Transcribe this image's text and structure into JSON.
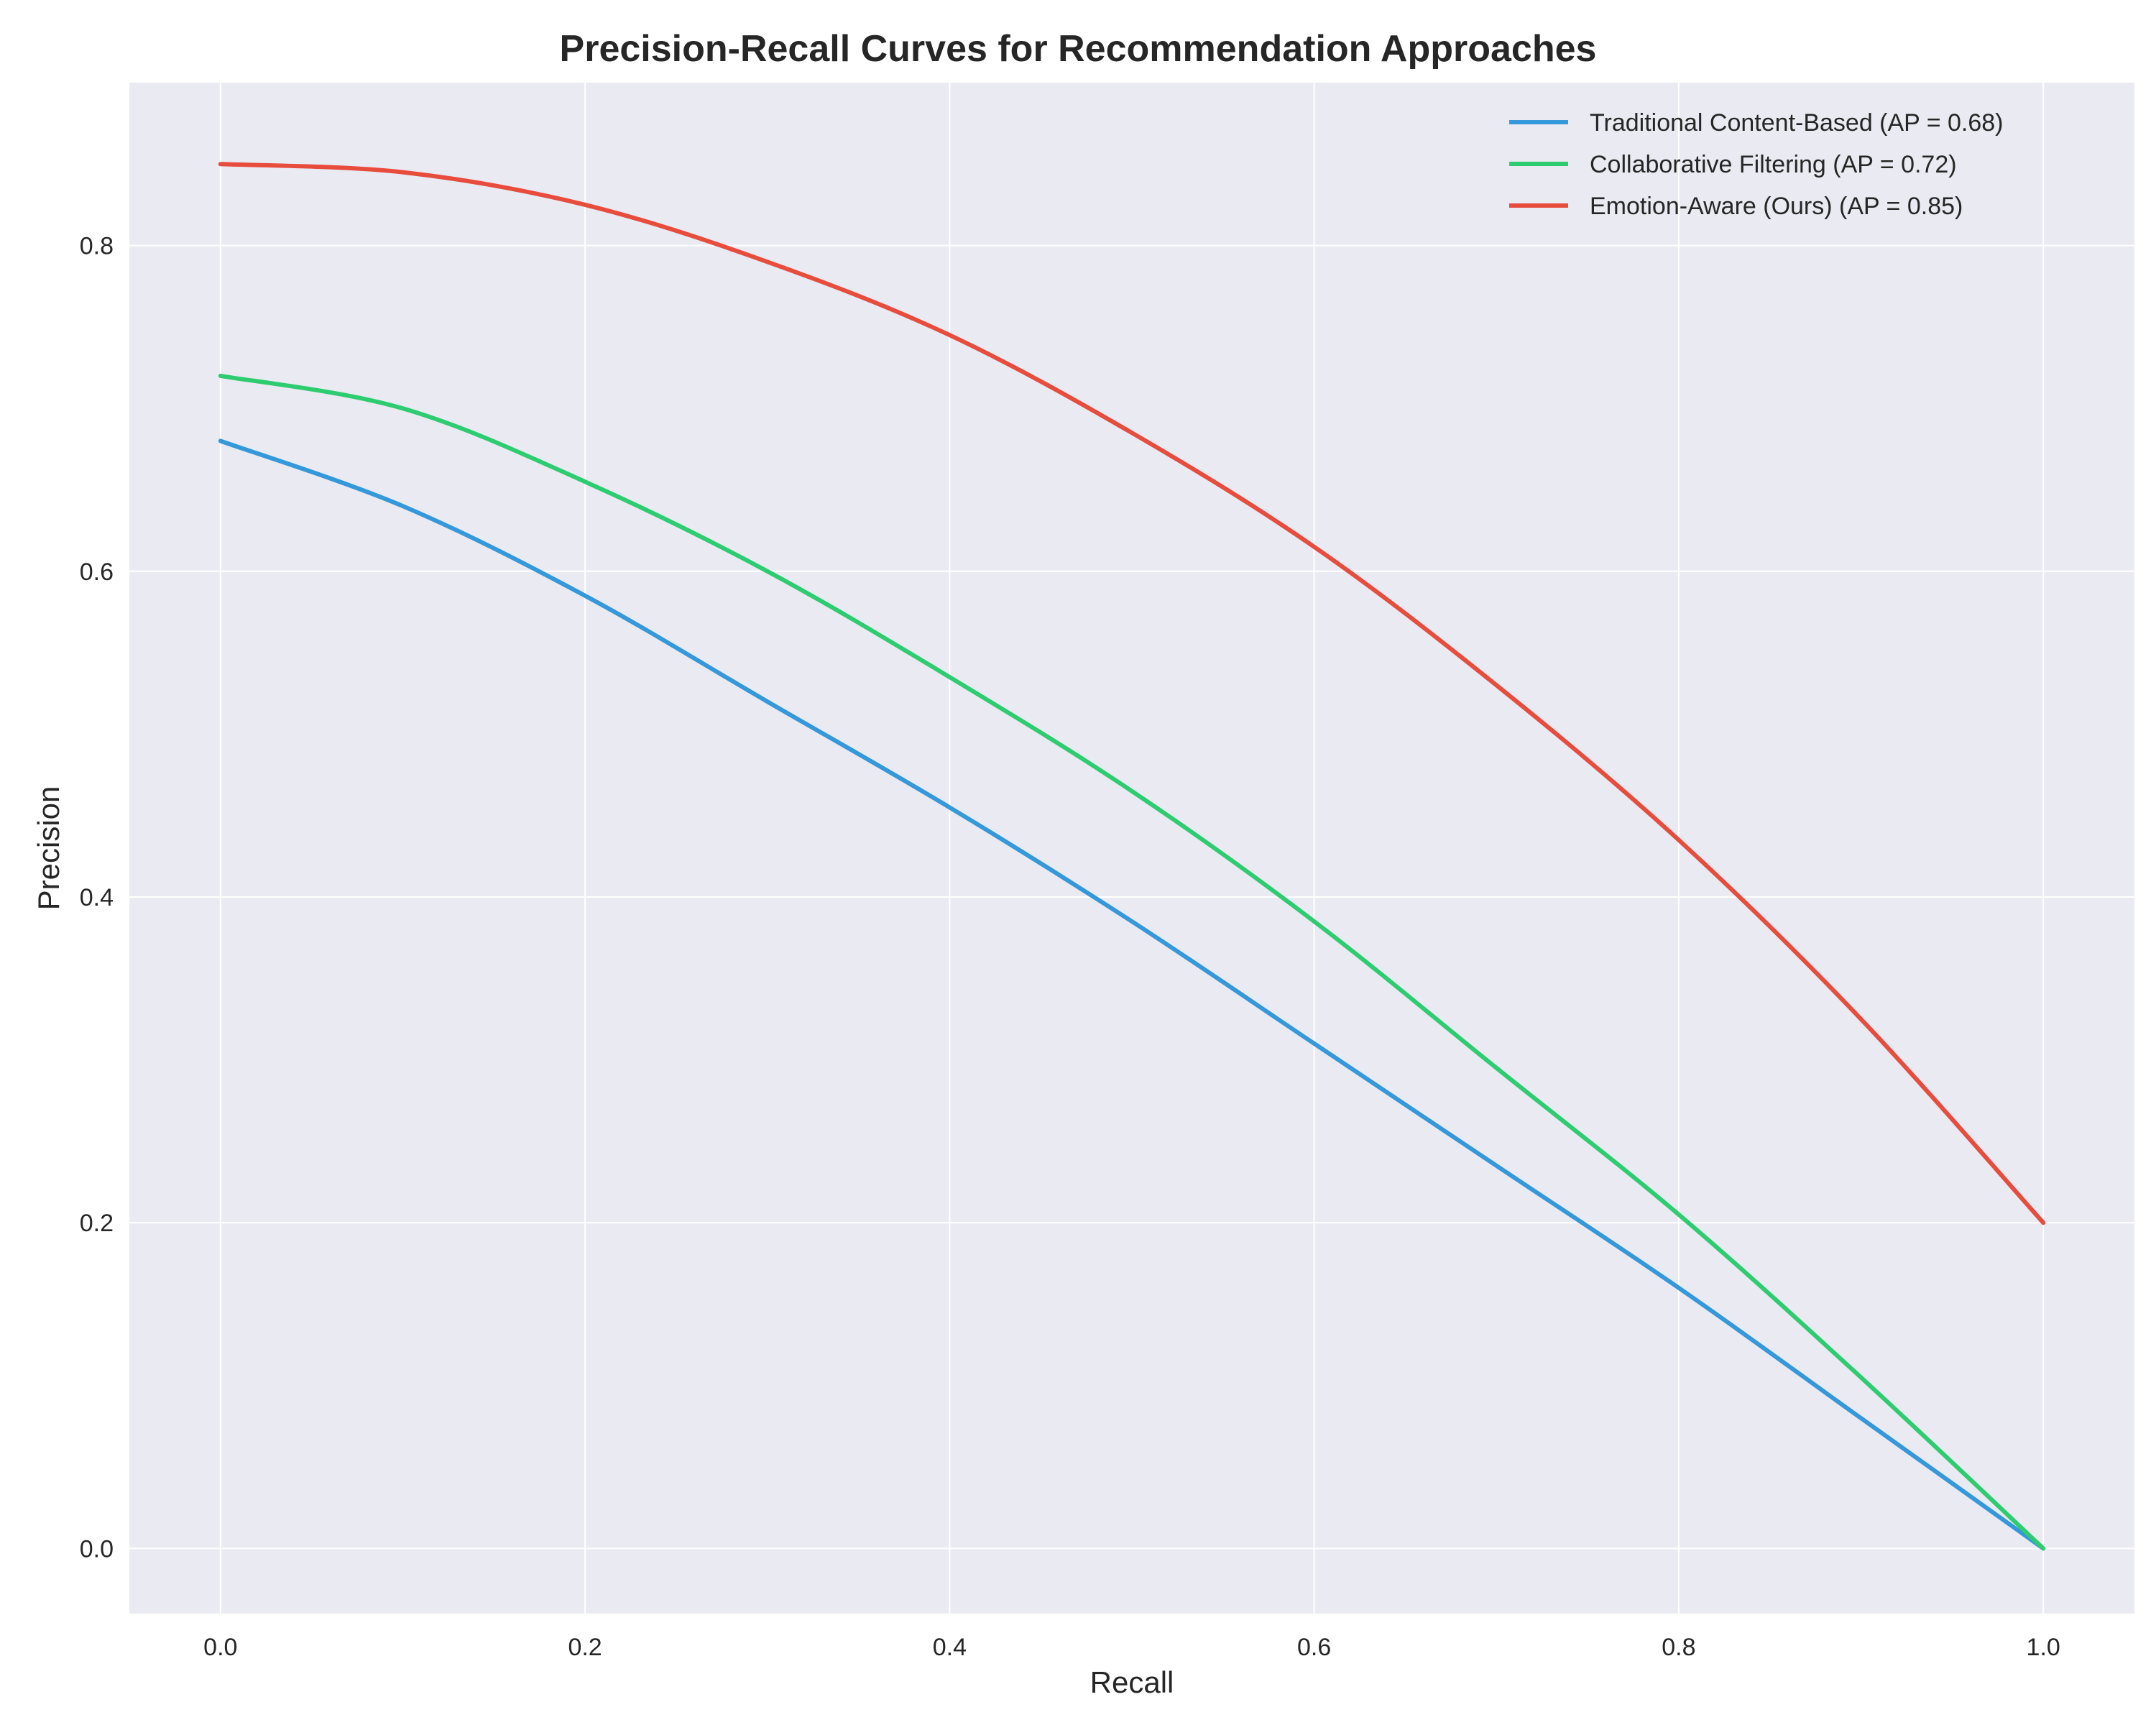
{
  "chart_data": {
    "type": "line",
    "title": "Precision-Recall Curves for Recommendation Approaches",
    "xlabel": "Recall",
    "ylabel": "Precision",
    "xlim": [
      -0.05,
      1.05
    ],
    "ylim": [
      -0.04,
      0.9
    ],
    "xticks": [
      0.0,
      0.2,
      0.4,
      0.6,
      0.8,
      1.0
    ],
    "yticks": [
      0.0,
      0.2,
      0.4,
      0.6,
      0.8
    ],
    "xtick_labels": [
      "0.0",
      "0.2",
      "0.4",
      "0.6",
      "0.8",
      "1.0"
    ],
    "ytick_labels": [
      "0.0",
      "0.2",
      "0.4",
      "0.6",
      "0.8"
    ],
    "grid": true,
    "legend_position": "top-right",
    "x": [
      0.0,
      0.1,
      0.2,
      0.3,
      0.4,
      0.5,
      0.6,
      0.7,
      0.8,
      0.9,
      1.0
    ],
    "series": [
      {
        "name": "Traditional Content-Based (AP = 0.68)",
        "color": "#3498db",
        "values": [
          0.68,
          0.64,
          0.585,
          0.52,
          0.455,
          0.385,
          0.31,
          0.235,
          0.16,
          0.08,
          0.0
        ]
      },
      {
        "name": "Collaborative Filtering (AP = 0.72)",
        "color": "#2ecc71",
        "values": [
          0.72,
          0.7,
          0.655,
          0.6,
          0.535,
          0.465,
          0.385,
          0.295,
          0.205,
          0.105,
          0.0
        ]
      },
      {
        "name": "Emotion-Aware (Ours) (AP = 0.85)",
        "color": "#e74c3c",
        "values": [
          0.85,
          0.845,
          0.825,
          0.79,
          0.745,
          0.685,
          0.615,
          0.53,
          0.435,
          0.325,
          0.2
        ]
      }
    ]
  },
  "colors": {
    "plot_background": "#eaeaf2",
    "grid": "#ffffff"
  }
}
